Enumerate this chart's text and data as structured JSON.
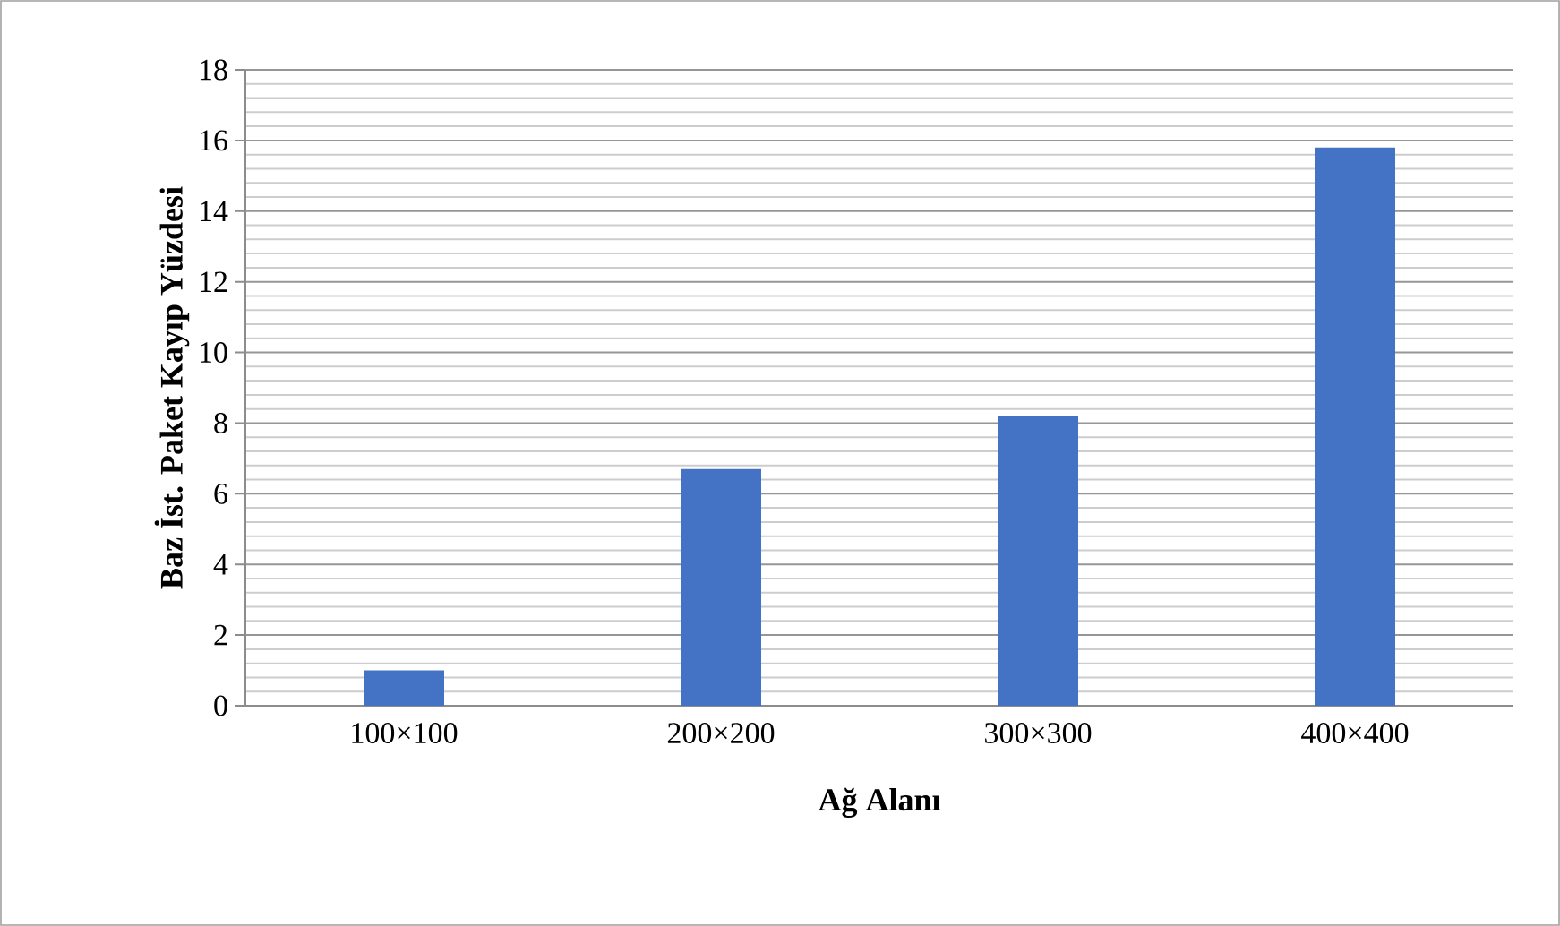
{
  "chart_data": {
    "type": "bar",
    "xlabel": "Ağ Alanı",
    "ylabel": "Baz İst. Paket Kayıp Yüzdesi",
    "categories": [
      "100×100",
      "200×200",
      "300×300",
      "400×400"
    ],
    "values": [
      1.0,
      6.7,
      8.2,
      15.8
    ],
    "color": "#4472c4",
    "ylim": [
      0,
      18
    ],
    "yticks": [
      0,
      2,
      4,
      6,
      8,
      10,
      12,
      14,
      16,
      18
    ],
    "grid": "y"
  }
}
